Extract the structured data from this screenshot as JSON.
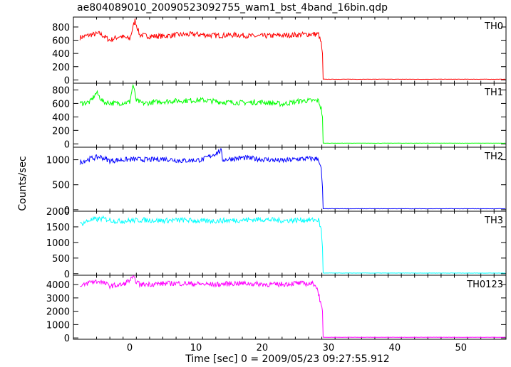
{
  "chart_data": {
    "type": "line",
    "title": "ae804089010_20090523092755_wam1_bst_4band_16bin.qdp",
    "xlabel": "Time [sec] 0 = 2009/05/23 09:27:55.912",
    "ylabel": "Counts/sec",
    "xlim": [
      -8.5,
      56.8
    ],
    "x_ticks": [
      0,
      10,
      20,
      30,
      40,
      50
    ],
    "cutoff_time": 29.2,
    "panels": [
      {
        "name": "TH0",
        "color": "#ff0000",
        "ylim": [
          -50,
          950
        ],
        "y_ticks": [
          0,
          200,
          400,
          600,
          800
        ],
        "x": [
          -7.5,
          -6,
          -4.5,
          -3,
          -1.5,
          0,
          0.8,
          1.5,
          3,
          5,
          7,
          10,
          13,
          16,
          19,
          22,
          25,
          27,
          28.5,
          28.9,
          29.1,
          29.2,
          35,
          45,
          56.8
        ],
        "y": [
          640,
          680,
          700,
          600,
          660,
          620,
          900,
          680,
          660,
          660,
          680,
          690,
          670,
          680,
          660,
          670,
          680,
          690,
          690,
          550,
          400,
          10,
          10,
          10,
          10
        ]
      },
      {
        "name": "TH1",
        "color": "#00ff00",
        "ylim": [
          -50,
          900
        ],
        "y_ticks": [
          0,
          200,
          400,
          600,
          800
        ],
        "x": [
          -7.5,
          -6,
          -5,
          -4,
          -2,
          0,
          0.5,
          1,
          2,
          5,
          8,
          11,
          14,
          17,
          20,
          23,
          26,
          28.5,
          28.9,
          29.1,
          29.2,
          35,
          45,
          56.8
        ],
        "y": [
          600,
          620,
          760,
          620,
          600,
          620,
          880,
          640,
          600,
          630,
          640,
          650,
          620,
          610,
          620,
          590,
          640,
          640,
          520,
          400,
          10,
          10,
          10,
          10
        ]
      },
      {
        "name": "TH2",
        "color": "#0000ff",
        "ylim": [
          -30,
          1250
        ],
        "y_ticks": [
          0,
          500,
          1000
        ],
        "x": [
          -7.5,
          -6,
          -4.5,
          -3,
          -1,
          1,
          3,
          5,
          8,
          11,
          13.8,
          14,
          17,
          20,
          23,
          26,
          28.5,
          28.9,
          29.1,
          29.2,
          35,
          45,
          56.8
        ],
        "y": [
          950,
          1020,
          1060,
          980,
          1000,
          1010,
          1000,
          1020,
          980,
          1000,
          1180,
          1000,
          1040,
          1010,
          980,
          1020,
          1020,
          800,
          450,
          20,
          20,
          20,
          20
        ]
      },
      {
        "name": "TH3",
        "color": "#00ffff",
        "ylim": [
          -50,
          2000
        ],
        "y_ticks": [
          0,
          500,
          1000,
          1500,
          2000
        ],
        "x": [
          -7.5,
          -6,
          -4,
          -2,
          0,
          2,
          5,
          8,
          11,
          14,
          17,
          20,
          23,
          26,
          28.5,
          28.9,
          29.1,
          29.2,
          35,
          45,
          56.8
        ],
        "y": [
          1580,
          1720,
          1760,
          1680,
          1700,
          1720,
          1700,
          1720,
          1680,
          1700,
          1720,
          1740,
          1700,
          1720,
          1720,
          1400,
          850,
          20,
          20,
          20,
          20
        ]
      },
      {
        "name": "TH0123",
        "color": "#ff00ff",
        "ylim": [
          -100,
          4700
        ],
        "y_ticks": [
          0,
          1000,
          2000,
          3000,
          4000
        ],
        "x": [
          -7.5,
          -6,
          -4.5,
          -3,
          -1,
          0.5,
          1.5,
          4,
          7,
          10,
          13,
          16,
          19,
          22,
          25,
          28,
          28.6,
          28.9,
          29.1,
          29.2,
          35,
          45,
          56.8
        ],
        "y": [
          3800,
          4200,
          4250,
          3900,
          4000,
          4500,
          4000,
          4050,
          4100,
          4050,
          4000,
          4100,
          4050,
          4000,
          4100,
          4050,
          3200,
          2300,
          2000,
          50,
          50,
          50,
          50
        ]
      }
    ]
  }
}
